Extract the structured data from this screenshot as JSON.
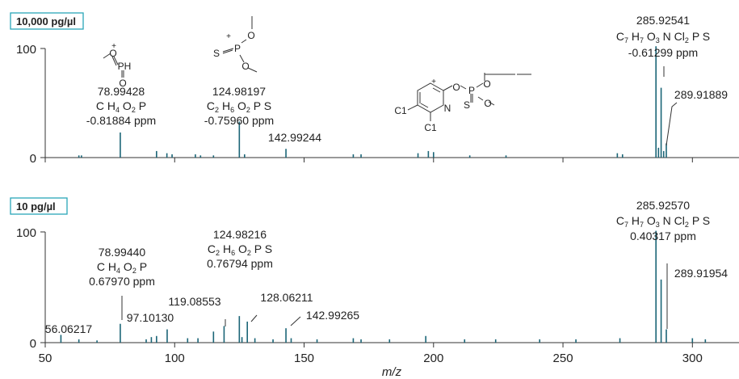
{
  "chart_data": {
    "type": "bar",
    "title": "",
    "xlabel": "m/z",
    "ylabel": "",
    "xlim": [
      50,
      318
    ],
    "ylim": [
      0,
      100
    ],
    "x_ticks": [
      50,
      100,
      150,
      200,
      250,
      300
    ],
    "y_ticks": [
      0,
      100
    ],
    "colors": {
      "peak": "#1b6577",
      "box_border": "#2aa6b8",
      "axis": "#333333"
    },
    "panels": [
      {
        "label": "10,000 pg/µl",
        "peaks": [
          {
            "x": 63.0,
            "y": 2
          },
          {
            "x": 64.0,
            "y": 2
          },
          {
            "x": 78.99428,
            "y": 23
          },
          {
            "x": 93.0,
            "y": 6
          },
          {
            "x": 97.0,
            "y": 4
          },
          {
            "x": 99.0,
            "y": 3
          },
          {
            "x": 108.0,
            "y": 3
          },
          {
            "x": 110.0,
            "y": 2
          },
          {
            "x": 115.0,
            "y": 2
          },
          {
            "x": 124.98197,
            "y": 33
          },
          {
            "x": 127.0,
            "y": 3
          },
          {
            "x": 142.99244,
            "y": 8
          },
          {
            "x": 169.0,
            "y": 3
          },
          {
            "x": 172.0,
            "y": 3
          },
          {
            "x": 194.0,
            "y": 4
          },
          {
            "x": 198.0,
            "y": 6
          },
          {
            "x": 200.0,
            "y": 5
          },
          {
            "x": 214.0,
            "y": 2
          },
          {
            "x": 228.0,
            "y": 2
          },
          {
            "x": 271.0,
            "y": 4
          },
          {
            "x": 273.0,
            "y": 3
          },
          {
            "x": 285.92541,
            "y": 102
          },
          {
            "x": 286.9,
            "y": 9
          },
          {
            "x": 287.92,
            "y": 64
          },
          {
            "x": 288.9,
            "y": 6
          },
          {
            "x": 289.91889,
            "y": 13
          }
        ],
        "annotations": [
          {
            "x": 78.99428,
            "lines": [
              "78.99428",
              "C H4 O2 P",
              "-0.81884 ppm"
            ]
          },
          {
            "x": 124.98197,
            "lines": [
              "124.98197",
              "C2 H6 O2 P S",
              "-0.75960 ppm"
            ]
          },
          {
            "x": 142.99244,
            "lines": [
              "142.99244"
            ]
          },
          {
            "x": 285.92541,
            "lines": [
              "285.92541",
              "C7 H7 O3 N Cl2 P S",
              "-0.61299 ppm"
            ]
          },
          {
            "x": 289.91889,
            "lines": [
              "289.91889"
            ]
          }
        ],
        "structure_atoms": {
          "s1": [
            "O",
            "+",
            "PH",
            "O"
          ],
          "s2": [
            "O",
            "+",
            "S",
            "P",
            "O"
          ],
          "s3": [
            "+",
            "O",
            "P",
            "O",
            "S",
            "O",
            "N",
            "C1",
            "C1"
          ]
        }
      },
      {
        "label": "10 pg/µl",
        "peaks": [
          {
            "x": 56.06217,
            "y": 7
          },
          {
            "x": 63.0,
            "y": 3
          },
          {
            "x": 70.0,
            "y": 2
          },
          {
            "x": 78.9944,
            "y": 17
          },
          {
            "x": 89.0,
            "y": 3
          },
          {
            "x": 91.0,
            "y": 5
          },
          {
            "x": 93.0,
            "y": 6
          },
          {
            "x": 97.1013,
            "y": 12
          },
          {
            "x": 105.0,
            "y": 4
          },
          {
            "x": 109.0,
            "y": 4
          },
          {
            "x": 115.0,
            "y": 10
          },
          {
            "x": 119.08553,
            "y": 15
          },
          {
            "x": 124.98216,
            "y": 24
          },
          {
            "x": 126.0,
            "y": 5
          },
          {
            "x": 128.06211,
            "y": 19
          },
          {
            "x": 131.0,
            "y": 4
          },
          {
            "x": 138.0,
            "y": 3
          },
          {
            "x": 142.99265,
            "y": 13
          },
          {
            "x": 145.0,
            "y": 4
          },
          {
            "x": 155.0,
            "y": 3
          },
          {
            "x": 169.0,
            "y": 4
          },
          {
            "x": 172.0,
            "y": 3
          },
          {
            "x": 183.0,
            "y": 3
          },
          {
            "x": 197.0,
            "y": 6
          },
          {
            "x": 212.0,
            "y": 3
          },
          {
            "x": 224.0,
            "y": 3
          },
          {
            "x": 241.0,
            "y": 3
          },
          {
            "x": 255.0,
            "y": 3
          },
          {
            "x": 272.0,
            "y": 4
          },
          {
            "x": 285.9257,
            "y": 101
          },
          {
            "x": 287.92,
            "y": 57
          },
          {
            "x": 289.91954,
            "y": 12
          },
          {
            "x": 300.0,
            "y": 4
          },
          {
            "x": 305.0,
            "y": 3
          }
        ],
        "annotations": [
          {
            "x": 56.06217,
            "lines": [
              "56.06217"
            ]
          },
          {
            "x": 78.9944,
            "lines": [
              "78.99440",
              "C H4 O2 P",
              "0.67970 ppm"
            ]
          },
          {
            "x": 97.1013,
            "lines": [
              "97.10130"
            ]
          },
          {
            "x": 119.08553,
            "lines": [
              "119.08553"
            ]
          },
          {
            "x": 124.98216,
            "lines": [
              "124.98216",
              "C2 H6 O2 P S",
              "0.76794 ppm"
            ]
          },
          {
            "x": 128.06211,
            "lines": [
              "128.06211"
            ]
          },
          {
            "x": 142.99265,
            "lines": [
              "142.99265"
            ]
          },
          {
            "x": 285.9257,
            "lines": [
              "285.92570",
              "C7 H7 O3 N Cl2 P S",
              "0.40317 ppm"
            ]
          },
          {
            "x": 289.91954,
            "lines": [
              "289.91954"
            ]
          }
        ]
      }
    ]
  }
}
